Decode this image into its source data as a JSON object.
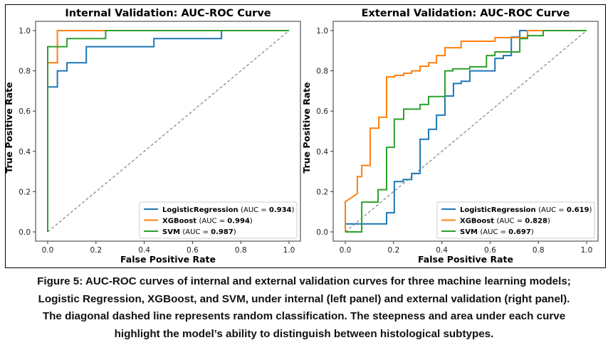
{
  "chart_data": [
    {
      "type": "line",
      "title": "Internal Validation: AUC-ROC Curve",
      "xlabel": "False Positive Rate",
      "ylabel": "True Positive Rate",
      "xlim": [
        0,
        1
      ],
      "ylim": [
        0,
        1
      ],
      "xticks": [
        "0.0",
        "0.2",
        "0.4",
        "0.6",
        "0.8",
        "1.0"
      ],
      "yticks": [
        "0.0",
        "0.2",
        "0.4",
        "0.6",
        "0.8",
        "1.0"
      ],
      "grid": false,
      "legend_position": "lower-right",
      "reference_line": {
        "label": "random classification",
        "style": "dashed",
        "points": [
          [
            0,
            0
          ],
          [
            1,
            1
          ]
        ]
      },
      "series": [
        {
          "name": "LogisticRegression",
          "auc": "0.934",
          "color": "#1f77b4",
          "points": [
            [
              0,
              0
            ],
            [
              0,
              0.72
            ],
            [
              0.04,
              0.72
            ],
            [
              0.04,
              0.8
            ],
            [
              0.08,
              0.8
            ],
            [
              0.08,
              0.84
            ],
            [
              0.16,
              0.84
            ],
            [
              0.16,
              0.92
            ],
            [
              0.44,
              0.92
            ],
            [
              0.44,
              0.96
            ],
            [
              0.72,
              0.96
            ],
            [
              0.72,
              1.0
            ],
            [
              1,
              1
            ]
          ]
        },
        {
          "name": "XGBoost",
          "auc": "0.994",
          "color": "#ff7f0e",
          "points": [
            [
              0,
              0
            ],
            [
              0,
              0.84
            ],
            [
              0.04,
              0.84
            ],
            [
              0.04,
              1.0
            ],
            [
              1,
              1
            ]
          ]
        },
        {
          "name": "SVM",
          "auc": "0.987",
          "color": "#2ca02c",
          "points": [
            [
              0,
              0
            ],
            [
              0,
              0.92
            ],
            [
              0.08,
              0.92
            ],
            [
              0.08,
              0.96
            ],
            [
              0.24,
              0.96
            ],
            [
              0.24,
              1.0
            ],
            [
              1,
              1
            ]
          ]
        }
      ]
    },
    {
      "type": "line",
      "title": "External Validation: AUC-ROC Curve",
      "xlabel": "False Positive Rate",
      "ylabel": "True Positive Rate",
      "xlim": [
        0,
        1
      ],
      "ylim": [
        0,
        1
      ],
      "xticks": [
        "0.0",
        "0.2",
        "0.4",
        "0.6",
        "0.8",
        "1.0"
      ],
      "yticks": [
        "0.0",
        "0.2",
        "0.4",
        "0.6",
        "0.8",
        "1.0"
      ],
      "grid": false,
      "legend_position": "lower-right",
      "reference_line": {
        "label": "random classification",
        "style": "dashed",
        "points": [
          [
            0,
            0
          ],
          [
            1,
            1
          ]
        ]
      },
      "series": [
        {
          "name": "LogisticRegression",
          "auc": "0.619",
          "color": "#1f77b4",
          "points": [
            [
              0,
              0
            ],
            [
              0,
              0.04
            ],
            [
              0.171,
              0.04
            ],
            [
              0.171,
              0.095
            ],
            [
              0.203,
              0.095
            ],
            [
              0.203,
              0.25
            ],
            [
              0.24,
              0.25
            ],
            [
              0.24,
              0.26
            ],
            [
              0.275,
              0.26
            ],
            [
              0.275,
              0.29
            ],
            [
              0.31,
              0.29
            ],
            [
              0.31,
              0.46
            ],
            [
              0.345,
              0.46
            ],
            [
              0.345,
              0.51
            ],
            [
              0.378,
              0.51
            ],
            [
              0.378,
              0.58
            ],
            [
              0.413,
              0.58
            ],
            [
              0.413,
              0.675
            ],
            [
              0.448,
              0.675
            ],
            [
              0.448,
              0.737
            ],
            [
              0.48,
              0.737
            ],
            [
              0.48,
              0.748
            ],
            [
              0.516,
              0.748
            ],
            [
              0.516,
              0.8
            ],
            [
              0.62,
              0.8
            ],
            [
              0.62,
              0.862
            ],
            [
              0.655,
              0.862
            ],
            [
              0.655,
              0.876
            ],
            [
              0.688,
              0.876
            ],
            [
              0.688,
              0.968
            ],
            [
              0.723,
              0.968
            ],
            [
              0.723,
              1.0
            ],
            [
              1,
              1
            ]
          ]
        },
        {
          "name": "XGBoost",
          "auc": "0.828",
          "color": "#ff7f0e",
          "points": [
            [
              0,
              0
            ],
            [
              0,
              0.15
            ],
            [
              0.05,
              0.19
            ],
            [
              0.05,
              0.275
            ],
            [
              0.068,
              0.275
            ],
            [
              0.068,
              0.33
            ],
            [
              0.103,
              0.33
            ],
            [
              0.103,
              0.515
            ],
            [
              0.139,
              0.515
            ],
            [
              0.139,
              0.57
            ],
            [
              0.171,
              0.57
            ],
            [
              0.171,
              0.77
            ],
            [
              0.204,
              0.77
            ],
            [
              0.204,
              0.777
            ],
            [
              0.242,
              0.777
            ],
            [
              0.242,
              0.788
            ],
            [
              0.275,
              0.788
            ],
            [
              0.275,
              0.8
            ],
            [
              0.31,
              0.8
            ],
            [
              0.31,
              0.823
            ],
            [
              0.345,
              0.823
            ],
            [
              0.345,
              0.84
            ],
            [
              0.378,
              0.84
            ],
            [
              0.378,
              0.876
            ],
            [
              0.413,
              0.876
            ],
            [
              0.413,
              0.915
            ],
            [
              0.48,
              0.915
            ],
            [
              0.48,
              0.947
            ],
            [
              0.62,
              0.947
            ],
            [
              0.62,
              0.965
            ],
            [
              0.755,
              0.965
            ],
            [
              0.755,
              1.0
            ],
            [
              1,
              1
            ]
          ]
        },
        {
          "name": "SVM",
          "auc": "0.697",
          "color": "#2ca02c",
          "points": [
            [
              0,
              0
            ],
            [
              0.068,
              0
            ],
            [
              0.068,
              0.148
            ],
            [
              0.136,
              0.148
            ],
            [
              0.136,
              0.21
            ],
            [
              0.171,
              0.21
            ],
            [
              0.171,
              0.42
            ],
            [
              0.203,
              0.42
            ],
            [
              0.203,
              0.56
            ],
            [
              0.242,
              0.56
            ],
            [
              0.242,
              0.61
            ],
            [
              0.31,
              0.61
            ],
            [
              0.31,
              0.633
            ],
            [
              0.345,
              0.633
            ],
            [
              0.345,
              0.672
            ],
            [
              0.413,
              0.672
            ],
            [
              0.413,
              0.8
            ],
            [
              0.445,
              0.8
            ],
            [
              0.445,
              0.81
            ],
            [
              0.516,
              0.81
            ],
            [
              0.516,
              0.82
            ],
            [
              0.585,
              0.82
            ],
            [
              0.585,
              0.876
            ],
            [
              0.62,
              0.876
            ],
            [
              0.62,
              0.894
            ],
            [
              0.723,
              0.894
            ],
            [
              0.723,
              0.96
            ],
            [
              0.755,
              0.96
            ],
            [
              0.755,
              0.975
            ],
            [
              0.82,
              0.975
            ],
            [
              0.82,
              1.0
            ],
            [
              1,
              1
            ]
          ]
        }
      ]
    }
  ],
  "legend_text": {
    "auc_prefix": "(AUC = ",
    "auc_suffix": ")"
  },
  "caption": {
    "lines": [
      "Figure 5: AUC-ROC curves of internal and external validation curves for three machine learning models;",
      "Logistic Regression, XGBoost, and SVM, under internal (left panel) and external validation (right panel).",
      "The diagonal dashed line represents random classification. The steepness and area under each curve",
      "highlight the model’s ability to distinguish between histological subtypes."
    ]
  }
}
